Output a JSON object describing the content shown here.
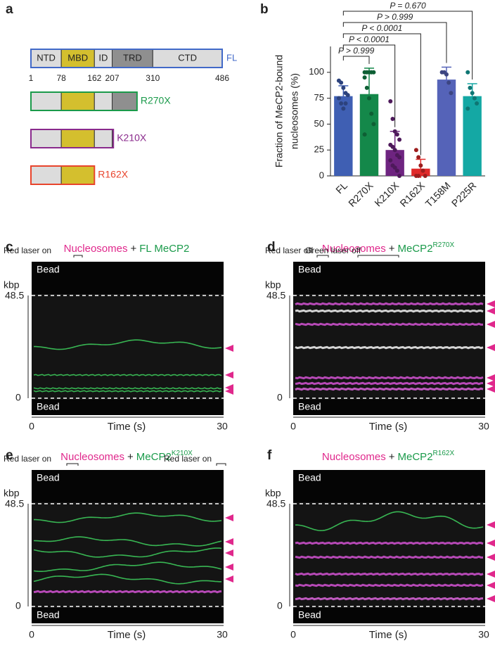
{
  "panel_a": {
    "letter": "a",
    "label": "FL",
    "label_color": "#4169c8",
    "domains": [
      {
        "name": "NTD",
        "color": "#dcdcdc"
      },
      {
        "name": "MBD",
        "color": "#d4bf2e"
      },
      {
        "name": "ID",
        "color": "#dcdcdc"
      },
      {
        "name": "TRD",
        "color": "#8f8f8f"
      },
      {
        "name": "CTD",
        "color": "#dcdcdc"
      }
    ],
    "positions": [
      1,
      78,
      162,
      207,
      310,
      486
    ],
    "truncations": [
      {
        "name": "R270X",
        "end": 270,
        "color": "#1a9a4a"
      },
      {
        "name": "K210X",
        "end": 210,
        "color": "#8a2a8c"
      },
      {
        "name": "R162X",
        "end": 162,
        "color": "#e8442c"
      }
    ]
  },
  "chart_data": {
    "type": "bar",
    "letter": "b",
    "y_label": [
      "Fraction of MeCP2-bound",
      "nucleosomes (%)"
    ],
    "categories": [
      "FL",
      "R270X",
      "K210X",
      "R162X",
      "T158M",
      "P225R"
    ],
    "values": [
      77,
      79,
      25,
      7,
      93,
      77
    ],
    "errors": [
      10,
      25,
      18,
      9,
      12,
      12
    ],
    "colors": [
      "#3f5fb3",
      "#14884a",
      "#6e2480",
      "#e02a2a",
      "#5563b8",
      "#14a8a4"
    ],
    "points": [
      [
        92,
        90,
        85,
        80,
        78,
        75,
        70,
        65,
        70
      ],
      [
        100,
        100,
        100,
        100,
        100,
        95,
        85,
        75,
        60,
        50,
        40
      ],
      [
        72,
        55,
        43,
        40,
        35,
        30,
        28,
        25,
        20,
        18,
        15,
        10,
        8,
        5,
        0
      ],
      [
        25,
        18,
        10,
        5,
        0,
        0,
        0
      ],
      [
        100,
        100,
        98,
        90,
        80
      ],
      [
        100,
        85,
        80,
        75,
        70,
        65
      ]
    ],
    "ylim": [
      0,
      125
    ],
    "yticks": [
      0,
      25,
      50,
      75,
      100
    ],
    "comparisons": [
      {
        "from": "FL",
        "to": "R270X",
        "label": "P > 0.999"
      },
      {
        "from": "FL",
        "to": "K210X",
        "label": "P < 0.0001"
      },
      {
        "from": "FL",
        "to": "R162X",
        "label": "P < 0.0001"
      },
      {
        "from": "FL",
        "to": "T158M",
        "label": "P > 0.999"
      },
      {
        "from": "FL",
        "to": "P225R",
        "label": "P = 0.670"
      }
    ]
  },
  "kymographs": [
    {
      "letter": "c",
      "title_parts": [
        {
          "text": "Nucleosomes",
          "color": "#e0288c"
        },
        {
          "text": "+",
          "color": "#222"
        },
        {
          "text": "FL MeCP2",
          "color": "#1a9a4a"
        }
      ],
      "lasers": [
        "Red laser on"
      ],
      "y_unit": "kbp",
      "y_top": 48.5,
      "y_bottom": 0,
      "bead_top": "Bead",
      "bead_bottom": "Bead",
      "x_label": "Time (s)",
      "x_start": 0,
      "x_end": 30
    },
    {
      "letter": "d",
      "title_parts": [
        {
          "text": "Nucleosomes",
          "color": "#e0288c"
        },
        {
          "text": "+",
          "color": "#222"
        },
        {
          "text": "MeCP2",
          "color": "#1a9a4a",
          "sup": "R270X"
        }
      ],
      "lasers": [
        "Red laser off",
        "Green laser off"
      ],
      "y_unit": "kbp",
      "y_top": 48.5,
      "y_bottom": 0,
      "bead_top": "Bead",
      "bead_bottom": "Bead",
      "x_label": "Time (s)",
      "x_start": 0,
      "x_end": 30
    },
    {
      "letter": "e",
      "title_parts": [
        {
          "text": "Nucleosomes",
          "color": "#e0288c"
        },
        {
          "text": "+",
          "color": "#222"
        },
        {
          "text": "MeCP2",
          "color": "#1a9a4a",
          "sup": "K210X"
        }
      ],
      "lasers": [
        "Red laser on",
        "Red laser on"
      ],
      "y_unit": "kbp",
      "y_top": 48.5,
      "y_bottom": 0,
      "bead_top": "Bead",
      "bead_bottom": "Bead",
      "x_label": "Time (s)",
      "x_start": 0,
      "x_end": 30
    },
    {
      "letter": "f",
      "title_parts": [
        {
          "text": "Nucleosomes",
          "color": "#e0288c"
        },
        {
          "text": "+",
          "color": "#222"
        },
        {
          "text": "MeCP2",
          "color": "#1a9a4a",
          "sup": "R162X"
        }
      ],
      "lasers": [],
      "y_unit": "kbp",
      "y_top": 48.5,
      "y_bottom": 0,
      "bead_top": "Bead",
      "bead_bottom": "Bead",
      "x_label": "Time (s)",
      "x_start": 0,
      "x_end": 30
    }
  ]
}
